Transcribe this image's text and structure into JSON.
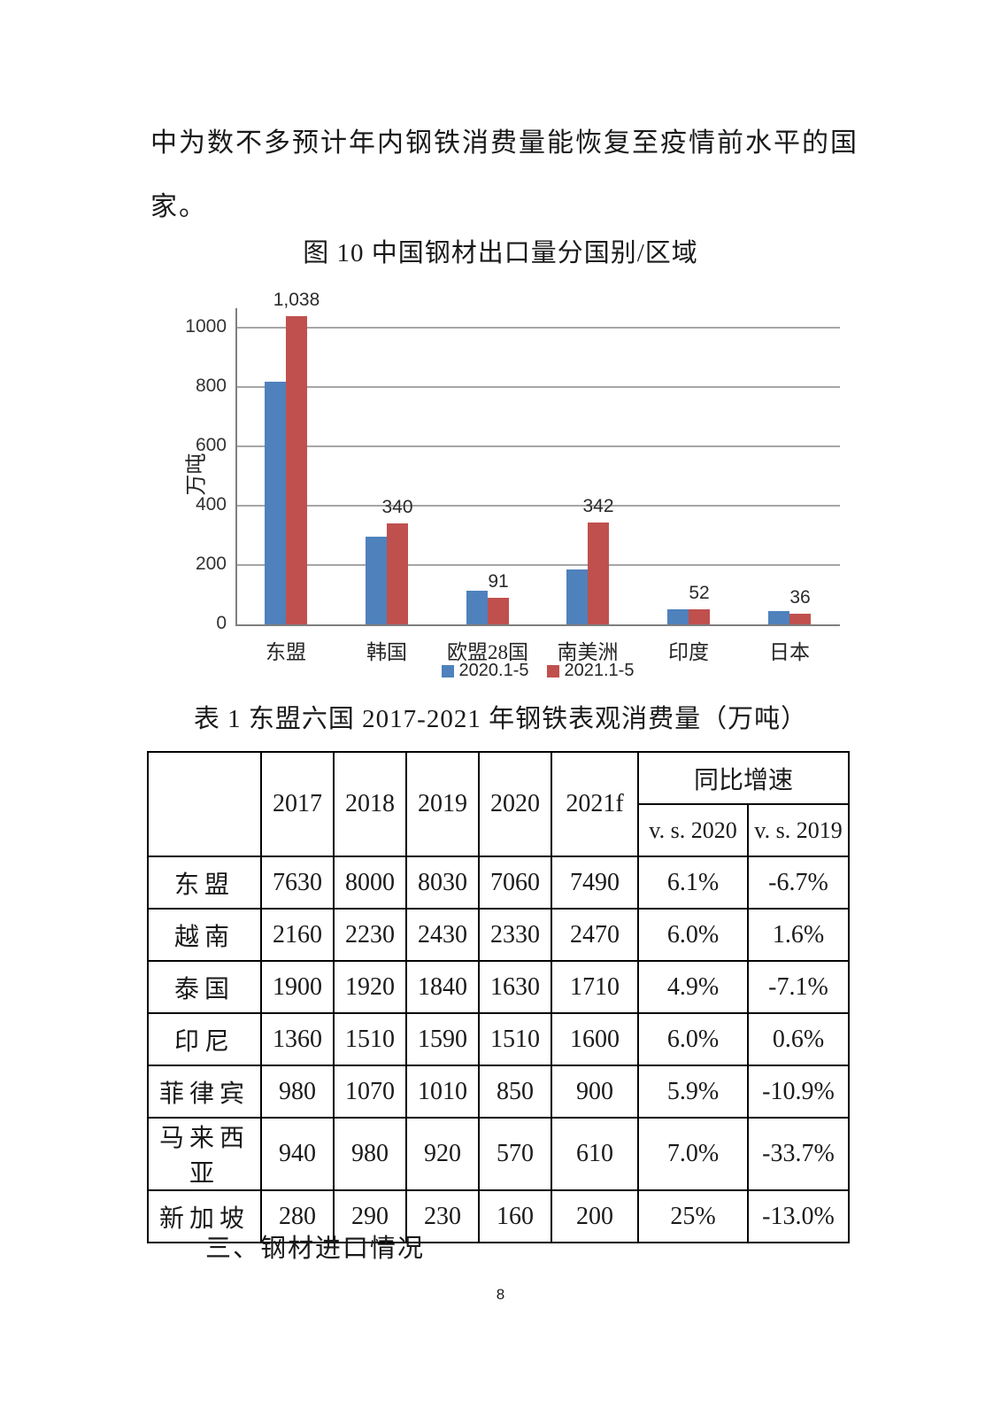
{
  "page": {
    "paragraph_lines": [
      "中为数不多预计年内钢铁消费量能恢复至疫情前水平的国",
      "家。"
    ],
    "section_heading": "三、钢材进口情况",
    "page_number": "8"
  },
  "chart_data": {
    "type": "bar",
    "title": "图 10 中国钢材出口量分国别/区域",
    "ylabel": "万吨",
    "xlabel": "",
    "categories": [
      "东盟",
      "韩国",
      "欧盟28国",
      "南美洲",
      "印度",
      "日本"
    ],
    "series": [
      {
        "name": "2020.1-5",
        "color": "#4F81BD",
        "values": [
          818,
          295,
          113,
          185,
          51,
          44
        ]
      },
      {
        "name": "2021.1-5",
        "color": "#C0504D",
        "values": [
          1038,
          340,
          91,
          342,
          52,
          36
        ],
        "labels": [
          "1,038",
          "340",
          "91",
          "342",
          "52",
          "36"
        ]
      }
    ],
    "ylim": [
      0,
      1070
    ],
    "yticks": [
      0,
      200,
      400,
      600,
      800,
      1000
    ],
    "grid": true,
    "legend_position": "bottom"
  },
  "table": {
    "title": "表 1 东盟六国 2017-2021 年钢铁表观消费量（万吨）",
    "header": {
      "corner": "",
      "years": [
        "2017",
        "2018",
        "2019",
        "2020",
        "2021f"
      ],
      "growth_label": "同比增速",
      "growth_sub": [
        "v. s. 2020",
        "v. s. 2019"
      ]
    },
    "rows": [
      {
        "name": "东盟",
        "values": [
          "7630",
          "8000",
          "8030",
          "7060",
          "7490",
          "6.1%",
          "-6.7%"
        ]
      },
      {
        "name": "越南",
        "values": [
          "2160",
          "2230",
          "2430",
          "2330",
          "2470",
          "6.0%",
          "1.6%"
        ]
      },
      {
        "name": "泰国",
        "values": [
          "1900",
          "1920",
          "1840",
          "1630",
          "1710",
          "4.9%",
          "-7.1%"
        ]
      },
      {
        "name": "印尼",
        "values": [
          "1360",
          "1510",
          "1590",
          "1510",
          "1600",
          "6.0%",
          "0.6%"
        ]
      },
      {
        "name": "菲律宾",
        "values": [
          "980",
          "1070",
          "1010",
          "850",
          "900",
          "5.9%",
          "-10.9%"
        ]
      },
      {
        "name": "马来西亚",
        "values": [
          "940",
          "980",
          "920",
          "570",
          "610",
          "7.0%",
          "-33.7%"
        ]
      },
      {
        "name": "新加坡",
        "values": [
          "280",
          "290",
          "230",
          "160",
          "200",
          "25%",
          "-13.0%"
        ]
      }
    ]
  }
}
